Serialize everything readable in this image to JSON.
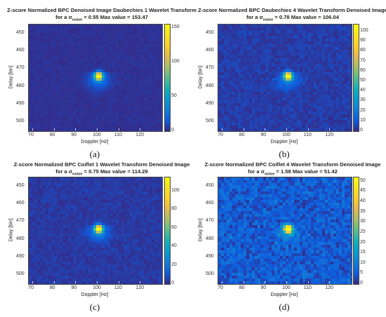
{
  "chart_data": [
    {
      "type": "heatmap",
      "panel_label": "(a)",
      "title": "Z-score Normalized BPC Denoised Image Daubechies 1 Wavelet Transform",
      "subtitle_prefix": "for a σ",
      "subtitle_sub": "noise",
      "subtitle_suffix": " = 0.55 Max value = 153.47",
      "xlabel": "Doppler [Hz]",
      "ylabel": "Delay [bin]",
      "xlim": [
        68,
        130
      ],
      "ylim": [
        445,
        505
      ],
      "xticks": [
        70,
        80,
        90,
        100,
        110,
        120
      ],
      "yticks": [
        450,
        460,
        470,
        480,
        490,
        500
      ],
      "clim": [
        0,
        155
      ],
      "cticks": [
        0,
        50,
        100,
        150
      ],
      "peak": {
        "x": 100.5,
        "y": 474,
        "value": 153.47
      },
      "noise_sigma": 0.55,
      "max_value": 153.47,
      "noise_level": 0.02
    },
    {
      "type": "heatmap",
      "panel_label": "(b)",
      "title": "Z-score Normalized BPC Daubechies 4 Wavelet Transform Denoised Image",
      "subtitle_prefix": "for a σ",
      "subtitle_sub": "noise",
      "subtitle_suffix": " = 0.78 Max value = 106.04",
      "xlabel": "Doppler [Hz]",
      "ylabel": "Delay [bin]",
      "xlim": [
        68,
        130
      ],
      "ylim": [
        445,
        505
      ],
      "xticks": [
        70,
        80,
        90,
        100,
        110,
        120
      ],
      "yticks": [
        450,
        460,
        470,
        480,
        490,
        500
      ],
      "clim": [
        0,
        107
      ],
      "cticks": [
        0,
        10,
        20,
        30,
        40,
        50,
        60,
        70,
        80,
        90,
        100
      ],
      "peak": {
        "x": 100.5,
        "y": 474,
        "value": 106.04
      },
      "noise_sigma": 0.78,
      "max_value": 106.04,
      "noise_level": 0.05
    },
    {
      "type": "heatmap",
      "panel_label": "(c)",
      "title": "Z-score Normalized BPC Coiflet 1 Wavelet Transform Denoised Image",
      "subtitle_prefix": "for a σ",
      "subtitle_sub": "noise",
      "subtitle_suffix": " = 0.75 Max value = 114.29",
      "xlabel": "Doppler [Hz]",
      "ylabel": "Delay [bin]",
      "xlim": [
        68,
        130
      ],
      "ylim": [
        445,
        505
      ],
      "xticks": [
        70,
        80,
        90,
        100,
        110,
        120
      ],
      "yticks": [
        450,
        460,
        470,
        480,
        490,
        500
      ],
      "clim": [
        0,
        115
      ],
      "cticks": [
        0,
        20,
        40,
        60,
        80,
        100
      ],
      "peak": {
        "x": 100.5,
        "y": 474,
        "value": 114.29
      },
      "noise_sigma": 0.75,
      "max_value": 114.29,
      "noise_level": 0.04
    },
    {
      "type": "heatmap",
      "panel_label": "(d)",
      "title": "Z-score Normalized BPC Coiflet 4 Wavelet Transform Denoised Image",
      "subtitle_prefix": "for a σ",
      "subtitle_sub": "noise",
      "subtitle_suffix": " = 1.58 Max value = 51.42",
      "xlabel": "Doppler [Hz]",
      "ylabel": "Delay [bin]",
      "xlim": [
        68,
        130
      ],
      "ylim": [
        445,
        505
      ],
      "xticks": [
        70,
        80,
        90,
        100,
        110,
        120
      ],
      "yticks": [
        450,
        460,
        470,
        480,
        490,
        500
      ],
      "clim": [
        0,
        52
      ],
      "cticks": [
        0,
        5,
        10,
        15,
        20,
        25,
        30,
        35,
        40,
        45,
        50
      ],
      "peak": {
        "x": 100.5,
        "y": 474,
        "value": 51.42
      },
      "noise_sigma": 1.58,
      "max_value": 51.42,
      "noise_level": 0.14
    }
  ],
  "colors": {
    "colormap": "parula"
  }
}
